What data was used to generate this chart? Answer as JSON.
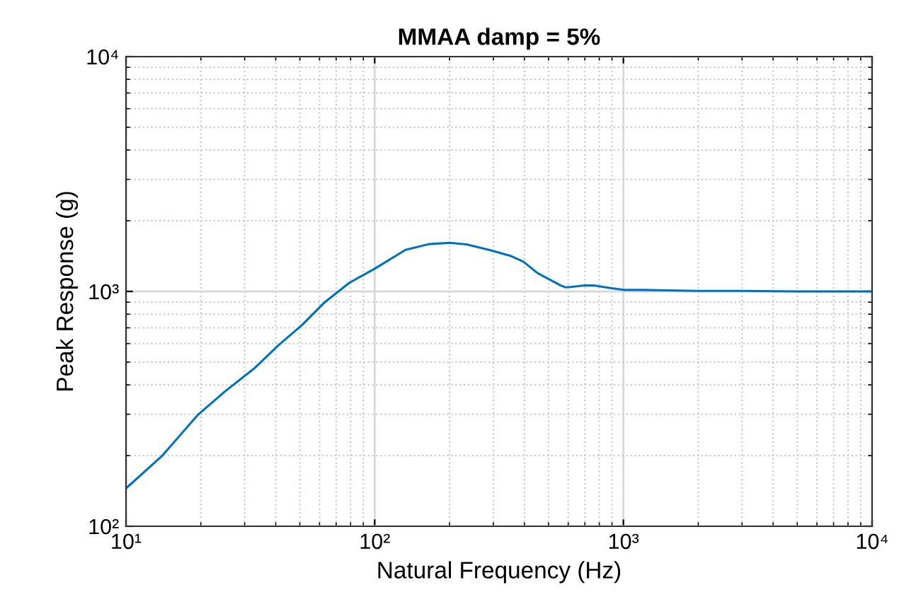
{
  "chart_data": {
    "type": "line",
    "title": "MMAA damp = 5%",
    "xlabel": "Natural Frequency (Hz)",
    "ylabel": "Peak Response (g)",
    "log": "xy",
    "grid": true,
    "xlim": [
      10,
      10000
    ],
    "ylim": [
      100,
      10000
    ],
    "xticks": [
      {
        "value": 10,
        "label": "10¹"
      },
      {
        "value": 100,
        "label": "10²"
      },
      {
        "value": 1000,
        "label": "10³"
      },
      {
        "value": 10000,
        "label": "10⁴"
      }
    ],
    "yticks": [
      {
        "value": 100,
        "label": "10²"
      },
      {
        "value": 1000,
        "label": "10³"
      },
      {
        "value": 10000,
        "label": "10⁴"
      }
    ],
    "series": [
      {
        "color": "#0072bd",
        "x": [
          10,
          14,
          19.5,
          25,
          33,
          41,
          50.8,
          63,
          78.9,
          100,
          133,
          165,
          200,
          234,
          290,
          350,
          396,
          452,
          514,
          560,
          587,
          640,
          700,
          760,
          850,
          1000,
          1200,
          1500,
          2000,
          3000,
          5000,
          10000
        ],
        "values": [
          145,
          200,
          299,
          375,
          473,
          590,
          716,
          900,
          1087,
          1250,
          1503,
          1590,
          1610,
          1586,
          1500,
          1420,
          1339,
          1197,
          1112,
          1060,
          1040,
          1050,
          1060,
          1060,
          1040,
          1015,
          1015,
          1010,
          1005,
          1005,
          1000,
          1000
        ]
      }
    ]
  }
}
